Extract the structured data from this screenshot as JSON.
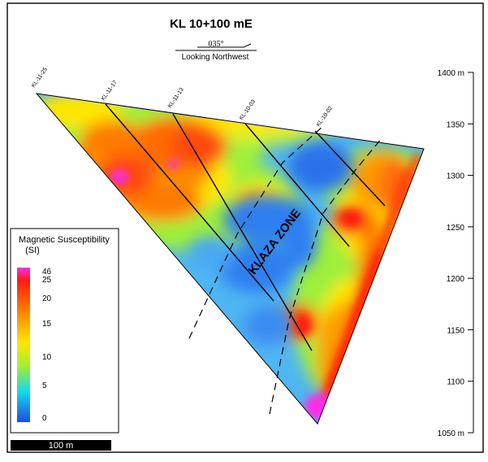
{
  "figure": {
    "title": "KL 10+100 mE",
    "bearing": "035°",
    "view_label": "Looking Northwest",
    "zone_label": "KLAZA ZONE",
    "scale_bar_label": "100 m"
  },
  "drill_holes": [
    "KL-11-25",
    "KL-11-17",
    "KL-11-13",
    "KL-10-03",
    "KL-10-02"
  ],
  "elevation_axis": {
    "unit": "m",
    "ticks": [
      "1400 m",
      "1350",
      "1300",
      "1250",
      "1200",
      "1150",
      "1100",
      "1050 m"
    ]
  },
  "legend": {
    "title_line1": "Magnetic Susceptibility",
    "title_line2": "(SI)",
    "labels": [
      "46",
      "25",
      "20",
      "15",
      "10",
      "5",
      "0"
    ],
    "colors": [
      "#ff2ce6",
      "#ff1a10",
      "#ff7a00",
      "#ffe600",
      "#9ef03a",
      "#19d8f0",
      "#1a4fe0"
    ]
  }
}
